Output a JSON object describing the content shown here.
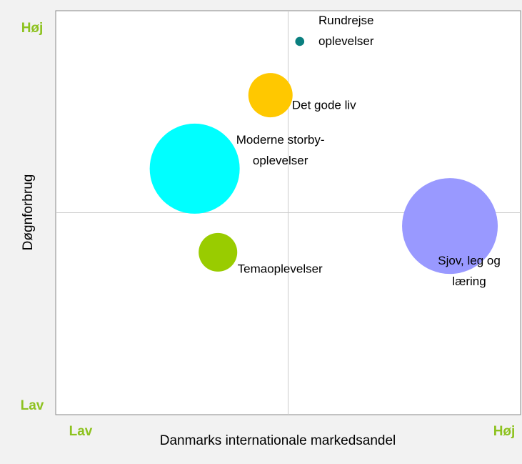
{
  "chart_data": {
    "type": "bubble",
    "x_label": "Danmarks internationale markedsandel",
    "y_label": "Døgnforbrug",
    "x_low": "Lav",
    "x_high": "Høj",
    "y_low": "Lav",
    "y_high": "Høj",
    "xlim": [
      0,
      100
    ],
    "ylim": [
      0,
      100
    ],
    "points": [
      {
        "label": [
          "Rundrejse",
          "oplevelser"
        ],
        "x": 52.5,
        "y": 92.4,
        "size": 0.4,
        "color": "#0a7f7f"
      },
      {
        "label": [
          "Det gode liv"
        ],
        "x": 46.2,
        "y": 79.1,
        "size": 9.6,
        "color": "#ffc800"
      },
      {
        "label": [
          "Moderne storby-",
          "oplevelser"
        ],
        "x": 29.9,
        "y": 60.9,
        "size": 39.7,
        "color": "#00ffff"
      },
      {
        "label": [
          "Temaoplevelser"
        ],
        "x": 34.9,
        "y": 40.2,
        "size": 7.3,
        "color": "#99cc00"
      },
      {
        "label": [
          "Sjov, leg og",
          "læring"
        ],
        "x": 84.8,
        "y": 46.7,
        "size": 44.9,
        "color": "#9999ff"
      }
    ]
  }
}
